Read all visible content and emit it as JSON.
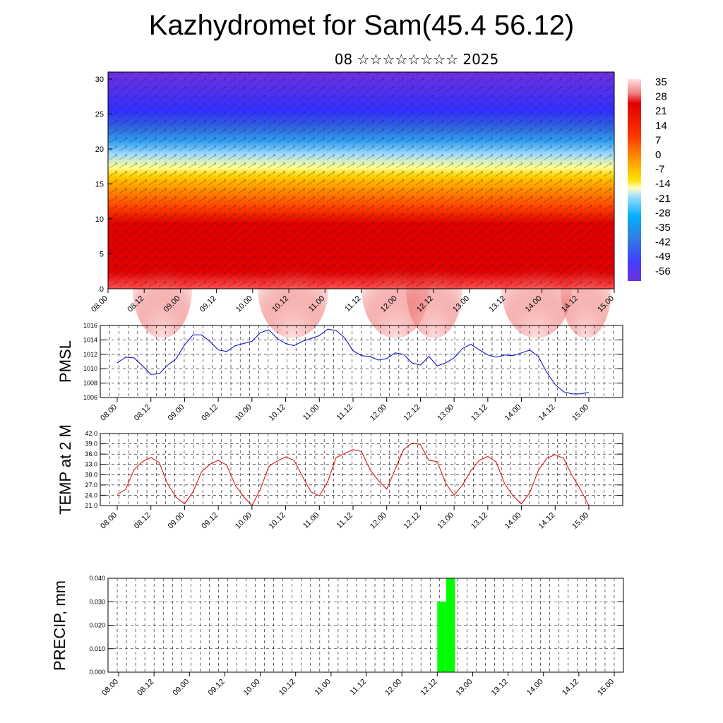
{
  "title": "Kazhydromet for Sam(45.4 56.12)",
  "subtitle": "08 ☆☆☆☆☆☆☆☆ 2025",
  "time_labels_major": [
    "08.00",
    "08.12",
    "09.00",
    "09.12",
    "10.00",
    "10.12",
    "11.00",
    "11.12",
    "12.00",
    "12.12",
    "13.00",
    "13.12",
    "14.00",
    "14.12",
    "15.00"
  ],
  "colorbar": {
    "labels": [
      "35",
      "28",
      "21",
      "14",
      "7",
      "0",
      "-7",
      "-14",
      "-21",
      "-28",
      "-35",
      "-42",
      "-49",
      "-56"
    ],
    "colors_top_to_bottom": [
      "#ffe0e0",
      "#f08080",
      "#e00000",
      "#e00000",
      "#ff3300",
      "#ff7700",
      "#ffb000",
      "#ffe000",
      "#ffffc0",
      "#a0e0ff",
      "#00b0ff",
      "#3080e0",
      "#4040ff",
      "#7030e0"
    ]
  },
  "chart_data": [
    {
      "type": "heatmap",
      "name": "cross-section",
      "title": "",
      "xlabel": "",
      "ylabel": "",
      "x_categories": [
        "08.00",
        "08.12",
        "09.00",
        "09.12",
        "10.00",
        "10.12",
        "11.00",
        "11.12",
        "12.00",
        "12.12",
        "13.00",
        "13.12",
        "14.00",
        "14.12",
        "15.00"
      ],
      "yticks": [
        0,
        5,
        10,
        15,
        20,
        25,
        30
      ],
      "ylim": [
        0,
        31
      ],
      "vertical_profile": [
        {
          "z": 0,
          "value": 33
        },
        {
          "z": 5,
          "value": 22
        },
        {
          "z": 10,
          "value": 14
        },
        {
          "z": 13,
          "value": 5
        },
        {
          "z": 16,
          "value": -7
        },
        {
          "z": 18,
          "value": -21
        },
        {
          "z": 21,
          "value": -35
        },
        {
          "z": 25,
          "value": -49
        },
        {
          "z": 31,
          "value": -56
        }
      ]
    },
    {
      "type": "line",
      "name": "pmsl",
      "title": "",
      "xlabel": "",
      "ylabel": "PMSL",
      "ylim": [
        1006,
        1016
      ],
      "yticks": [
        "1016",
        "1014",
        "1012",
        "1010",
        "1008",
        "1006"
      ],
      "color": "#0000cc",
      "x_start": "08.00",
      "x_step_hours": 3,
      "values": [
        1010.8,
        1011.6,
        1011.5,
        1010.4,
        1009.2,
        1009.3,
        1010.5,
        1011.4,
        1013.3,
        1014.7,
        1014.7,
        1013.8,
        1012.6,
        1012.4,
        1013.2,
        1013.5,
        1013.8,
        1015.0,
        1015.4,
        1014.2,
        1013.5,
        1013.2,
        1013.8,
        1014.2,
        1014.6,
        1015.5,
        1015.3,
        1014.3,
        1012.5,
        1011.8,
        1011.7,
        1011.2,
        1011.4,
        1012.2,
        1012.0,
        1010.8,
        1010.5,
        1011.7,
        1010.4,
        1010.8,
        1011.5,
        1012.8,
        1013.4,
        1012.6,
        1011.9,
        1011.6,
        1011.9,
        1011.8,
        1012.2,
        1012.6,
        1011.7,
        1009.5,
        1007.8,
        1006.8,
        1006.5,
        1006.5,
        1006.7
      ]
    },
    {
      "type": "line",
      "name": "temperature",
      "title": "",
      "xlabel": "",
      "ylabel": "TEMP at 2 M",
      "ylim": [
        21,
        42
      ],
      "yticks": [
        "42.0",
        "39.0",
        "36.0",
        "33.0",
        "30.0",
        "27.0",
        "24.0",
        "21.0"
      ],
      "color": "#dd0000",
      "x_start": "08.00",
      "x_step_hours": 3,
      "values": [
        24.2,
        25.7,
        31.5,
        33.8,
        35.0,
        33.5,
        27.2,
        23.4,
        21.5,
        25.0,
        30.8,
        33.0,
        34.2,
        32.8,
        27.0,
        23.6,
        21.0,
        25.8,
        32.4,
        34.0,
        35.2,
        34.2,
        29.5,
        25.0,
        23.8,
        28.0,
        35.0,
        36.2,
        37.3,
        36.8,
        31.5,
        28.3,
        25.8,
        31.5,
        37.3,
        39.2,
        38.8,
        34.2,
        33.8,
        27.5,
        24.0,
        27.0,
        31.2,
        34.2,
        35.3,
        33.7,
        27.4,
        23.8,
        21.5,
        24.8,
        31.2,
        34.8,
        35.8,
        34.8,
        29.8,
        25.7,
        21.0
      ]
    },
    {
      "type": "bar",
      "name": "precipitation",
      "title": "",
      "xlabel": "",
      "ylabel": "PRECIP, mm",
      "ylim": [
        0,
        0.04
      ],
      "yticks": [
        "0.040",
        "0.030",
        "0.020",
        "0.010",
        "0.000"
      ],
      "color": "#00ff00",
      "bars": [
        {
          "start": "12.12",
          "end": "12.15",
          "value": 0.03
        },
        {
          "start": "12.15",
          "end": "12.18",
          "value": 0.04
        }
      ]
    }
  ]
}
